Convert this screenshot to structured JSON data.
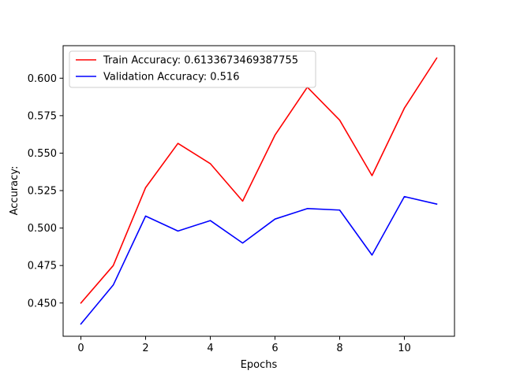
{
  "chart_data": {
    "type": "line",
    "xlabel": "Epochs",
    "ylabel": "Accuracy:",
    "xlim": [
      -0.55,
      11.55
    ],
    "ylim": [
      0.4278,
      0.6217
    ],
    "x_ticks": [
      0,
      2,
      4,
      6,
      8,
      10
    ],
    "y_ticks": [
      0.45,
      0.475,
      0.5,
      0.525,
      0.55,
      0.575,
      0.6
    ],
    "y_tick_labels": [
      "0.450",
      "0.475",
      "0.500",
      "0.525",
      "0.550",
      "0.575",
      "0.600"
    ],
    "grid": false,
    "legend_placement": "upper-left",
    "x": [
      0,
      1,
      2,
      3,
      4,
      5,
      6,
      7,
      8,
      9,
      10,
      11
    ],
    "series": [
      {
        "name": "Train Accuracy: 0.6133673469387755",
        "color": "#ff0000",
        "values": [
          0.45,
          0.475,
          0.527,
          0.5565,
          0.543,
          0.518,
          0.562,
          0.594,
          0.572,
          0.535,
          0.58,
          0.6134
        ]
      },
      {
        "name": "Validation Accuracy: 0.516",
        "color": "#0000ff",
        "values": [
          0.436,
          0.462,
          0.508,
          0.498,
          0.505,
          0.49,
          0.506,
          0.513,
          0.512,
          0.482,
          0.521,
          0.516
        ]
      }
    ]
  }
}
